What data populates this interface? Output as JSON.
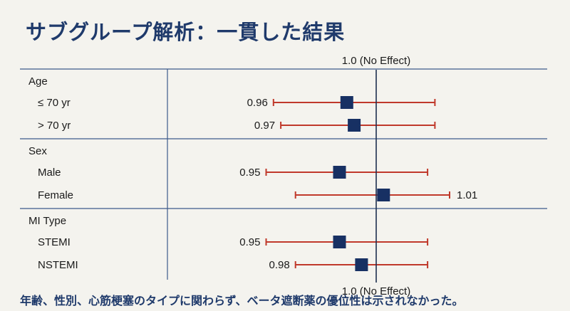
{
  "title": "サブグループ解析：一貫した結果",
  "footer": "年齢、性別、心筋梗塞のタイプに関わらず、ベータ遮断薬の優位性は示されなかった。",
  "colors": {
    "title": "#1f3a6b",
    "marker": "#173063",
    "ci": "#c0392b",
    "rule": "#3c5a8a"
  },
  "chart_data": {
    "type": "forest",
    "reference_line": {
      "value": 1.0,
      "label_top": "1.0 (No Effect)",
      "label_bottom": "1.0 (No Effect)"
    },
    "groups": [
      {
        "name": "Age",
        "rows": [
          {
            "label": "≤ 70 yr",
            "estimate": 0.96,
            "ci_low": 0.86,
            "ci_high": 1.08,
            "value_label": "0.96",
            "label_side": "left"
          },
          {
            "label": "> 70 yr",
            "estimate": 0.97,
            "ci_low": 0.87,
            "ci_high": 1.08,
            "value_label": "0.97",
            "label_side": "left"
          }
        ]
      },
      {
        "name": "Sex",
        "rows": [
          {
            "label": "Male",
            "estimate": 0.95,
            "ci_low": 0.85,
            "ci_high": 1.07,
            "value_label": "0.95",
            "label_side": "left"
          },
          {
            "label": "Female",
            "estimate": 1.01,
            "ci_low": 0.89,
            "ci_high": 1.1,
            "value_label": "1.01",
            "label_side": "right"
          }
        ]
      },
      {
        "name": "MI Type",
        "rows": [
          {
            "label": "STEMI",
            "estimate": 0.95,
            "ci_low": 0.85,
            "ci_high": 1.07,
            "value_label": "0.95",
            "label_side": "left"
          },
          {
            "label": "NSTEMI",
            "estimate": 0.98,
            "ci_low": 0.89,
            "ci_high": 1.07,
            "value_label": "0.98",
            "label_side": "left"
          }
        ]
      }
    ]
  }
}
